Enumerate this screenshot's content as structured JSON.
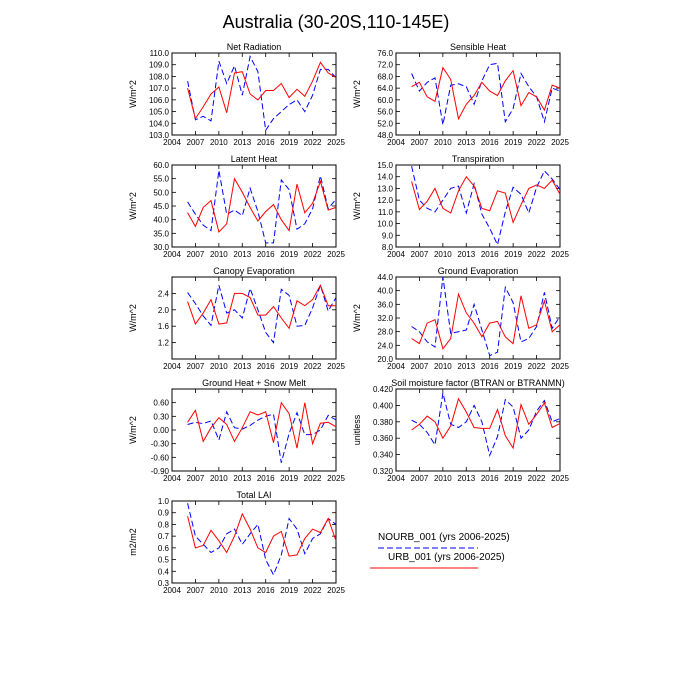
{
  "title": "Australia (30-20S,110-145E)",
  "legend": [
    {
      "label": "NOURB_001 (yrs 2006-2025)",
      "color": "#0000ff",
      "dash": "dashed"
    },
    {
      "label": "URB_001 (yrs 2006-2025)",
      "color": "#ff0000",
      "dash": "solid"
    }
  ],
  "chart_data": [
    {
      "type": "line",
      "title": "Net Radiation",
      "ylabel": "W/m^2",
      "xlim": [
        2004,
        2025
      ],
      "ylim": [
        103,
        110
      ],
      "xticks": [
        "2004",
        "2007",
        "2010",
        "2013",
        "2016",
        "2019",
        "2022",
        "2025"
      ],
      "yticks": [
        "103.0",
        "104.0",
        "105.0",
        "106.0",
        "107.0",
        "108.0",
        "109.0",
        "110.0"
      ],
      "x": [
        2006,
        2007,
        2008,
        2009,
        2010,
        2011,
        2012,
        2013,
        2014,
        2015,
        2016,
        2017,
        2018,
        2019,
        2020,
        2021,
        2022,
        2023,
        2024,
        2025
      ],
      "series": [
        {
          "name": "NOURB_001",
          "values": [
            107.6,
            104.3,
            104.6,
            104.2,
            109.3,
            107.4,
            108.9,
            106.4,
            109.7,
            108.4,
            103.4,
            104.4,
            105.0,
            105.6,
            106.0,
            105.0,
            106.4,
            108.6,
            108.6,
            107.9
          ]
        },
        {
          "name": "URB_001",
          "values": [
            107.0,
            104.4,
            105.4,
            106.5,
            107.1,
            104.9,
            108.3,
            108.4,
            106.5,
            106.0,
            106.8,
            106.8,
            107.4,
            106.2,
            106.9,
            106.3,
            107.6,
            109.2,
            108.3,
            107.9
          ]
        }
      ]
    },
    {
      "type": "line",
      "title": "Sensible Heat",
      "ylabel": "W/m^2",
      "xlim": [
        2004,
        2025
      ],
      "ylim": [
        48,
        76
      ],
      "xticks": [
        "2004",
        "2007",
        "2010",
        "2013",
        "2016",
        "2019",
        "2022",
        "2025"
      ],
      "yticks": [
        "48.0",
        "52.0",
        "56.0",
        "60.0",
        "64.0",
        "68.0",
        "72.0",
        "76.0"
      ],
      "x": [
        2006,
        2007,
        2008,
        2009,
        2010,
        2011,
        2012,
        2013,
        2014,
        2015,
        2016,
        2017,
        2018,
        2019,
        2020,
        2021,
        2022,
        2023,
        2024,
        2025
      ],
      "series": [
        {
          "name": "NOURB_001",
          "values": [
            69.0,
            63.0,
            66.0,
            67.5,
            51.5,
            65.0,
            65.5,
            64.5,
            58.5,
            66.5,
            72.0,
            72.5,
            52.5,
            57.0,
            69.0,
            64.5,
            61.0,
            52.5,
            64.0,
            63.0
          ]
        },
        {
          "name": "URB_001",
          "values": [
            64.5,
            66.0,
            61.0,
            59.5,
            71.0,
            67.0,
            53.5,
            58.5,
            61.5,
            66.0,
            63.0,
            61.5,
            66.5,
            70.0,
            58.0,
            62.5,
            61.0,
            56.5,
            65.0,
            64.0
          ]
        }
      ]
    },
    {
      "type": "line",
      "title": "Latent Heat",
      "ylabel": "W/m^2",
      "xlim": [
        2004,
        2025
      ],
      "ylim": [
        30,
        60
      ],
      "xticks": [
        "2004",
        "2007",
        "2010",
        "2013",
        "2016",
        "2019",
        "2022",
        "2025"
      ],
      "yticks": [
        "30.0",
        "35.0",
        "40.0",
        "45.0",
        "50.0",
        "55.0",
        "60.0"
      ],
      "x": [
        2006,
        2007,
        2008,
        2009,
        2010,
        2011,
        2012,
        2013,
        2014,
        2015,
        2016,
        2017,
        2018,
        2019,
        2020,
        2021,
        2022,
        2023,
        2024,
        2025
      ],
      "series": [
        {
          "name": "NOURB_001",
          "values": [
            46.5,
            42.0,
            38.0,
            36.0,
            58.0,
            42.0,
            43.5,
            41.5,
            51.5,
            43.0,
            31.5,
            31.5,
            54.5,
            51.0,
            36.5,
            38.5,
            44.0,
            56.0,
            44.0,
            47.5
          ]
        },
        {
          "name": "URB_001",
          "values": [
            42.5,
            37.5,
            44.5,
            47.0,
            35.5,
            38.5,
            55.0,
            50.0,
            44.5,
            39.5,
            43.0,
            45.5,
            40.0,
            36.0,
            53.0,
            42.5,
            46.0,
            54.0,
            43.5,
            44.5
          ]
        }
      ]
    },
    {
      "type": "line",
      "title": "Transpiration",
      "ylabel": "W/m^2",
      "xlim": [
        2004,
        2025
      ],
      "ylim": [
        8,
        15
      ],
      "xticks": [
        "2004",
        "2007",
        "2010",
        "2013",
        "2016",
        "2019",
        "2022",
        "2025"
      ],
      "yticks": [
        "8.0",
        "9.0",
        "10.0",
        "11.0",
        "12.0",
        "13.0",
        "14.0",
        "15.0"
      ],
      "x": [
        2006,
        2007,
        2008,
        2009,
        2010,
        2011,
        2012,
        2013,
        2014,
        2015,
        2016,
        2017,
        2018,
        2019,
        2020,
        2021,
        2022,
        2023,
        2024,
        2025
      ],
      "series": [
        {
          "name": "NOURB_001",
          "values": [
            14.9,
            12.0,
            11.3,
            11.0,
            12.0,
            13.0,
            13.2,
            10.9,
            13.4,
            10.8,
            9.6,
            8.2,
            11.0,
            13.1,
            12.5,
            10.9,
            13.1,
            14.5,
            13.8,
            12.9
          ]
        },
        {
          "name": "URB_001",
          "values": [
            13.6,
            11.2,
            11.9,
            13.0,
            11.3,
            10.9,
            12.8,
            14.0,
            13.2,
            11.3,
            11.1,
            12.8,
            12.6,
            10.1,
            11.6,
            13.0,
            13.3,
            13.0,
            13.7,
            12.5
          ]
        }
      ]
    },
    {
      "type": "line",
      "title": "Canopy Evaporation",
      "ylabel": "W/m^2",
      "xlim": [
        2004,
        2025
      ],
      "ylim": [
        0.8,
        2.8
      ],
      "xticks": [
        "2004",
        "2007",
        "2010",
        "2013",
        "2016",
        "2019",
        "2022",
        "2025"
      ],
      "yticks": [
        "1.2",
        "1.6",
        "2.0",
        "2.4"
      ],
      "x": [
        2006,
        2007,
        2008,
        2009,
        2010,
        2011,
        2012,
        2013,
        2014,
        2015,
        2016,
        2017,
        2018,
        2019,
        2020,
        2021,
        2022,
        2023,
        2024,
        2025
      ],
      "series": [
        {
          "name": "NOURB_001",
          "values": [
            2.42,
            2.15,
            1.85,
            1.62,
            2.6,
            1.92,
            2.0,
            1.8,
            2.52,
            2.0,
            1.45,
            1.2,
            2.5,
            2.35,
            1.6,
            1.62,
            2.05,
            2.6,
            1.97,
            2.3
          ]
        },
        {
          "name": "URB_001",
          "values": [
            2.2,
            1.65,
            1.92,
            2.25,
            1.65,
            1.68,
            2.4,
            2.4,
            2.3,
            1.87,
            1.87,
            2.08,
            1.8,
            1.55,
            2.22,
            2.1,
            2.25,
            2.6,
            2.1,
            2.1
          ]
        }
      ]
    },
    {
      "type": "line",
      "title": "Ground Evaporation",
      "ylabel": "W/m^2",
      "xlim": [
        2004,
        2025
      ],
      "ylim": [
        20,
        44
      ],
      "xticks": [
        "2004",
        "2007",
        "2010",
        "2013",
        "2016",
        "2019",
        "2022",
        "2025"
      ],
      "yticks": [
        "20.0",
        "24.0",
        "28.0",
        "32.0",
        "36.0",
        "40.0",
        "44.0"
      ],
      "x": [
        2006,
        2007,
        2008,
        2009,
        2010,
        2011,
        2012,
        2013,
        2014,
        2015,
        2016,
        2017,
        2018,
        2019,
        2020,
        2021,
        2022,
        2023,
        2024,
        2025
      ],
      "series": [
        {
          "name": "NOURB_001",
          "values": [
            29.5,
            28.0,
            25.0,
            23.5,
            44.0,
            27.5,
            28.0,
            28.5,
            36.0,
            28.5,
            21.0,
            22.0,
            41.0,
            36.5,
            25.0,
            26.0,
            29.5,
            39.5,
            29.0,
            32.5
          ]
        },
        {
          "name": "URB_001",
          "values": [
            26.0,
            24.5,
            30.5,
            31.5,
            23.0,
            26.0,
            39.0,
            33.5,
            30.5,
            26.5,
            30.5,
            31.0,
            26.5,
            24.5,
            38.5,
            29.0,
            30.0,
            37.0,
            28.0,
            30.0
          ]
        }
      ]
    },
    {
      "type": "line",
      "title": "Ground Heat + Snow Melt",
      "ylabel": "W/m^2",
      "xlim": [
        2004,
        2025
      ],
      "ylim": [
        -0.9,
        0.9
      ],
      "xticks": [
        "2004",
        "2007",
        "2010",
        "2013",
        "2016",
        "2019",
        "2022",
        "2025"
      ],
      "yticks": [
        "-0.90",
        "-0.60",
        "-0.30",
        "0.00",
        "0.30",
        "0.60"
      ],
      "x": [
        2006,
        2007,
        2008,
        2009,
        2010,
        2011,
        2012,
        2013,
        2014,
        2015,
        2016,
        2017,
        2018,
        2019,
        2020,
        2021,
        2022,
        2023,
        2024,
        2025
      ],
      "series": [
        {
          "name": "NOURB_001",
          "values": [
            0.12,
            0.17,
            0.14,
            0.2,
            -0.22,
            0.4,
            0.05,
            0.02,
            0.1,
            0.22,
            0.3,
            0.35,
            -0.72,
            -0.08,
            0.38,
            -0.1,
            -0.1,
            0.0,
            0.32,
            0.22
          ]
        },
        {
          "name": "URB_001",
          "values": [
            0.17,
            0.43,
            -0.25,
            0.05,
            0.27,
            0.12,
            -0.25,
            0.05,
            0.4,
            0.33,
            0.4,
            -0.28,
            0.6,
            0.36,
            -0.4,
            0.6,
            -0.3,
            0.15,
            0.17,
            0.07
          ]
        }
      ]
    },
    {
      "type": "line",
      "title": "Soil moisture factor (BTRAN or BTRANMN)",
      "ylabel": "unitless",
      "xlim": [
        2004,
        2025
      ],
      "ylim": [
        0.32,
        0.42
      ],
      "xticks": [
        "2004",
        "2007",
        "2010",
        "2013",
        "2016",
        "2019",
        "2022",
        "2025"
      ],
      "yticks": [
        "0.320",
        "0.340",
        "0.360",
        "0.380",
        "0.400",
        "0.420"
      ],
      "x": [
        2006,
        2007,
        2008,
        2009,
        2010,
        2011,
        2012,
        2013,
        2014,
        2015,
        2016,
        2017,
        2018,
        2019,
        2020,
        2021,
        2022,
        2023,
        2024,
        2025
      ],
      "series": [
        {
          "name": "NOURB_001",
          "values": [
            0.382,
            0.377,
            0.367,
            0.352,
            0.415,
            0.377,
            0.373,
            0.38,
            0.4,
            0.38,
            0.339,
            0.362,
            0.407,
            0.398,
            0.36,
            0.37,
            0.393,
            0.406,
            0.38,
            0.384
          ]
        },
        {
          "name": "URB_001",
          "values": [
            0.37,
            0.377,
            0.387,
            0.38,
            0.36,
            0.375,
            0.408,
            0.392,
            0.373,
            0.372,
            0.372,
            0.395,
            0.363,
            0.348,
            0.401,
            0.377,
            0.389,
            0.403,
            0.373,
            0.378
          ]
        }
      ]
    },
    {
      "type": "line",
      "title": "Total LAI",
      "ylabel": "m2/m2",
      "xlim": [
        2004,
        2025
      ],
      "ylim": [
        0.3,
        1.0
      ],
      "xticks": [
        "2004",
        "2007",
        "2010",
        "2013",
        "2016",
        "2019",
        "2022",
        "2025"
      ],
      "yticks": [
        "0.3",
        "0.4",
        "0.5",
        "0.6",
        "0.7",
        "0.8",
        "0.9",
        "1.0"
      ],
      "x": [
        2006,
        2007,
        2008,
        2009,
        2010,
        2011,
        2012,
        2013,
        2014,
        2015,
        2016,
        2017,
        2018,
        2019,
        2020,
        2021,
        2022,
        2023,
        2024,
        2025
      ],
      "series": [
        {
          "name": "NOURB_001",
          "values": [
            0.98,
            0.7,
            0.63,
            0.56,
            0.6,
            0.72,
            0.76,
            0.63,
            0.72,
            0.8,
            0.5,
            0.37,
            0.54,
            0.85,
            0.76,
            0.55,
            0.68,
            0.72,
            0.85,
            0.8
          ]
        },
        {
          "name": "URB_001",
          "values": [
            0.87,
            0.6,
            0.62,
            0.75,
            0.66,
            0.56,
            0.7,
            0.89,
            0.76,
            0.6,
            0.56,
            0.7,
            0.74,
            0.53,
            0.54,
            0.68,
            0.76,
            0.73,
            0.85,
            0.66
          ]
        }
      ]
    }
  ]
}
